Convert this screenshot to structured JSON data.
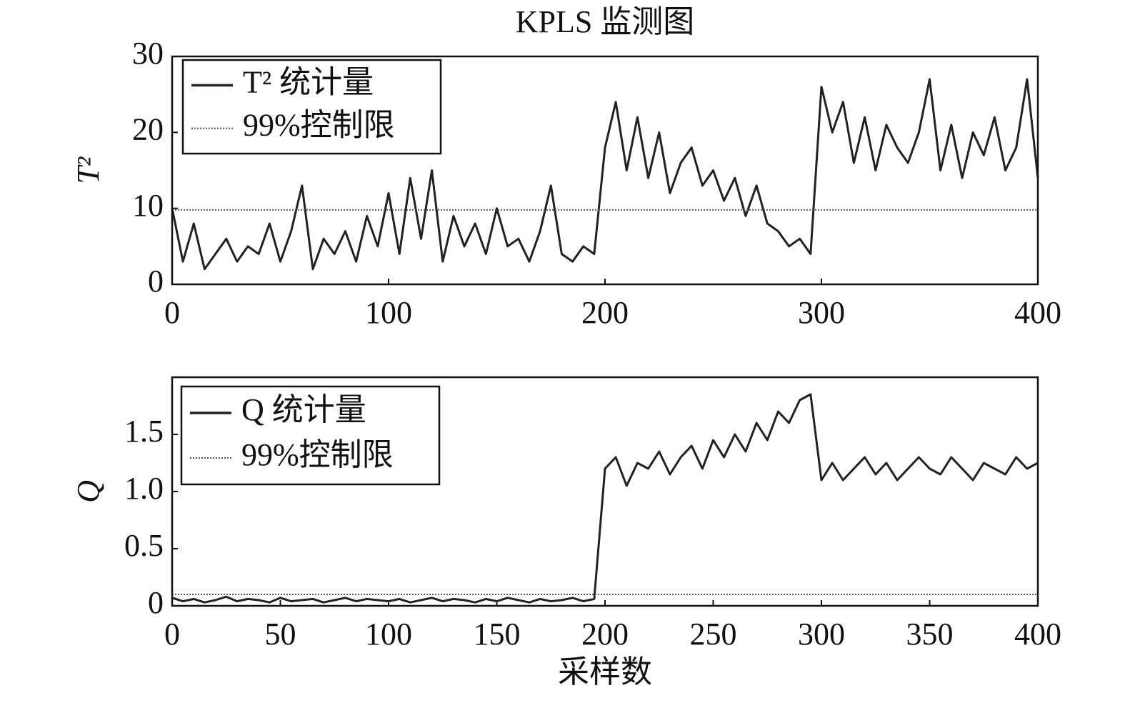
{
  "chart_data": [
    {
      "type": "line",
      "title": "KPLS 监测图",
      "ylabel": "T²",
      "x": [
        0,
        5,
        10,
        15,
        20,
        25,
        30,
        35,
        40,
        45,
        50,
        55,
        60,
        65,
        70,
        75,
        80,
        85,
        90,
        95,
        100,
        105,
        110,
        115,
        120,
        125,
        130,
        135,
        140,
        145,
        150,
        155,
        160,
        165,
        170,
        175,
        180,
        185,
        190,
        195,
        200,
        205,
        210,
        215,
        220,
        225,
        230,
        235,
        240,
        245,
        250,
        255,
        260,
        265,
        270,
        275,
        280,
        285,
        290,
        295,
        300,
        305,
        310,
        315,
        320,
        325,
        330,
        335,
        340,
        345,
        350,
        355,
        360,
        365,
        370,
        375,
        380,
        385,
        390,
        395,
        400
      ],
      "series": [
        {
          "name": "T² 统计量",
          "color": "#222222",
          "linestyle": "solid",
          "values": [
            10,
            3,
            8,
            2,
            4,
            6,
            3,
            5,
            4,
            8,
            3,
            7,
            13,
            2,
            6,
            4,
            7,
            3,
            9,
            5,
            12,
            4,
            14,
            6,
            15,
            3,
            9,
            5,
            8,
            4,
            10,
            5,
            6,
            3,
            7,
            13,
            4,
            3,
            5,
            4,
            18,
            24,
            15,
            22,
            14,
            20,
            12,
            16,
            18,
            13,
            15,
            11,
            14,
            9,
            13,
            8,
            7,
            5,
            6,
            4,
            26,
            20,
            24,
            16,
            22,
            15,
            21,
            18,
            16,
            20,
            27,
            15,
            21,
            14,
            20,
            17,
            22,
            15,
            18,
            27,
            14
          ]
        },
        {
          "name": "99%控制限",
          "color": "#555555",
          "linestyle": "dotted",
          "x": [
            0,
            400
          ],
          "values": [
            9.8,
            9.8
          ]
        }
      ],
      "xlim": [
        0,
        400
      ],
      "xticks": [
        0,
        100,
        200,
        300,
        400
      ],
      "ylim": [
        0,
        30
      ],
      "yticks": [
        0,
        10,
        20,
        30
      ],
      "legend": "upper left"
    },
    {
      "type": "line",
      "xlabel": "采样数",
      "ylabel": "Q",
      "x": [
        0,
        5,
        10,
        15,
        20,
        25,
        30,
        35,
        40,
        45,
        50,
        55,
        60,
        65,
        70,
        75,
        80,
        85,
        90,
        95,
        100,
        105,
        110,
        115,
        120,
        125,
        130,
        135,
        140,
        145,
        150,
        155,
        160,
        165,
        170,
        175,
        180,
        185,
        190,
        195,
        200,
        205,
        210,
        215,
        220,
        225,
        230,
        235,
        240,
        245,
        250,
        255,
        260,
        265,
        270,
        275,
        280,
        285,
        290,
        295,
        300,
        305,
        310,
        315,
        320,
        325,
        330,
        335,
        340,
        345,
        350,
        355,
        360,
        365,
        370,
        375,
        380,
        385,
        390,
        395,
        400
      ],
      "series": [
        {
          "name": "Q 统计量",
          "color": "#222222",
          "linestyle": "solid",
          "values": [
            0.07,
            0.04,
            0.06,
            0.03,
            0.05,
            0.08,
            0.04,
            0.06,
            0.05,
            0.03,
            0.07,
            0.04,
            0.05,
            0.06,
            0.03,
            0.05,
            0.07,
            0.04,
            0.06,
            0.05,
            0.04,
            0.06,
            0.03,
            0.05,
            0.07,
            0.04,
            0.06,
            0.05,
            0.03,
            0.06,
            0.04,
            0.07,
            0.05,
            0.03,
            0.06,
            0.04,
            0.05,
            0.07,
            0.04,
            0.06,
            1.2,
            1.3,
            1.05,
            1.25,
            1.2,
            1.35,
            1.15,
            1.3,
            1.4,
            1.2,
            1.45,
            1.3,
            1.5,
            1.35,
            1.6,
            1.45,
            1.7,
            1.6,
            1.8,
            1.85,
            1.1,
            1.25,
            1.1,
            1.2,
            1.3,
            1.15,
            1.25,
            1.1,
            1.2,
            1.3,
            1.2,
            1.15,
            1.3,
            1.2,
            1.1,
            1.25,
            1.2,
            1.15,
            1.3,
            1.2,
            1.25
          ]
        },
        {
          "name": "99%控制限",
          "color": "#555555",
          "linestyle": "dotted",
          "x": [
            0,
            400
          ],
          "values": [
            0.1,
            0.1
          ]
        }
      ],
      "xlim": [
        0,
        400
      ],
      "xticks": [
        0,
        50,
        100,
        150,
        200,
        250,
        300,
        350,
        400
      ],
      "ylim": [
        0,
        2
      ],
      "yticks": [
        0,
        0.5,
        {
          "value": 1,
          "label": "1.0"
        },
        1.5
      ],
      "legend": "upper left"
    }
  ]
}
